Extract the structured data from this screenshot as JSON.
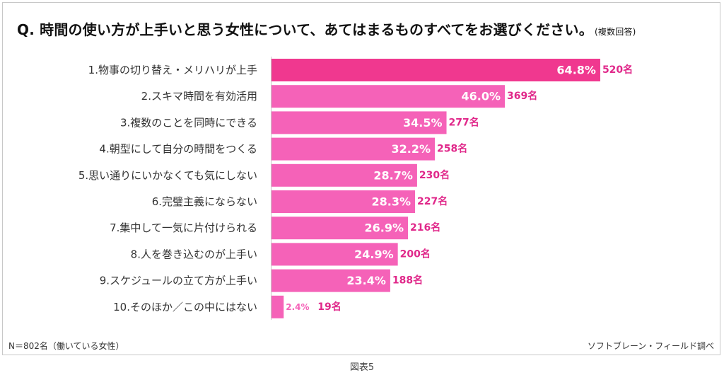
{
  "title": {
    "text": "Q.  時間の使い方が上手いと思う女性について、あてはまるものすべてをお選びください。",
    "note": "(複数回答)"
  },
  "footer": {
    "sample": "N＝802名（働いている女性）",
    "source": "ソフトブレーン・フィールド調べ"
  },
  "caption": "図表5",
  "colors": {
    "top_bar": "#f0388f",
    "bar": "#f562b8",
    "label": "#e0288a",
    "small_label": "#f562b8"
  },
  "chart_data": {
    "type": "bar",
    "orientation": "horizontal",
    "categories": [
      "1.物事の切り替え・メリハリが上手",
      "2.スキマ時間を有効活用",
      "3.複数のことを同時にできる",
      "4.朝型にして自分の時間をつくる",
      "5.思い通りにいかなくても気にしない",
      "6.完璧主義にならない",
      "7.集中して一気に片付けられる",
      "8.人を巻き込むのが上手い",
      "9.スケジュールの立て方が上手い",
      "10.そのほか／この中にはない"
    ],
    "values": [
      64.8,
      46.0,
      34.5,
      32.2,
      28.7,
      28.3,
      26.9,
      24.9,
      23.4,
      2.4
    ],
    "value_labels": [
      "64.8%",
      "46.0%",
      "34.5%",
      "32.2%",
      "28.7%",
      "28.3%",
      "26.9%",
      "24.9%",
      "23.4%",
      "2.4%"
    ],
    "counts": [
      "520名",
      "369名",
      "277名",
      "258名",
      "230名",
      "227名",
      "216名",
      "200名",
      "188名",
      "19名"
    ],
    "xlim": [
      0,
      100
    ],
    "grid": false
  }
}
